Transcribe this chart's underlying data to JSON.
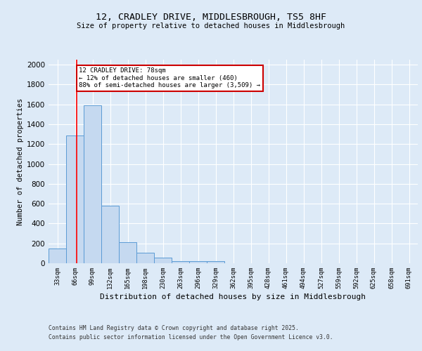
{
  "title_line1": "12, CRADLEY DRIVE, MIDDLESBROUGH, TS5 8HF",
  "title_line2": "Size of property relative to detached houses in Middlesbrough",
  "xlabel": "Distribution of detached houses by size in Middlesbrough",
  "ylabel": "Number of detached properties",
  "bins": [
    "33sqm",
    "66sqm",
    "99sqm",
    "132sqm",
    "165sqm",
    "198sqm",
    "230sqm",
    "263sqm",
    "296sqm",
    "329sqm",
    "362sqm",
    "395sqm",
    "428sqm",
    "461sqm",
    "494sqm",
    "527sqm",
    "559sqm",
    "592sqm",
    "625sqm",
    "658sqm",
    "691sqm"
  ],
  "values": [
    145,
    1290,
    1590,
    580,
    215,
    105,
    55,
    20,
    20,
    20,
    0,
    0,
    0,
    0,
    0,
    0,
    0,
    0,
    0,
    0,
    0
  ],
  "bar_color": "#c5d9f0",
  "bar_edgecolor": "#5b9bd5",
  "red_line_x": 1.08,
  "annotation_text": "12 CRADLEY DRIVE: 78sqm\n← 12% of detached houses are smaller (460)\n88% of semi-detached houses are larger (3,509) →",
  "annotation_box_color": "#ffffff",
  "annotation_box_edgecolor": "#cc0000",
  "ylim": [
    0,
    2050
  ],
  "yticks": [
    0,
    200,
    400,
    600,
    800,
    1000,
    1200,
    1400,
    1600,
    1800,
    2000
  ],
  "footer_line1": "Contains HM Land Registry data © Crown copyright and database right 2025.",
  "footer_line2": "Contains public sector information licensed under the Open Government Licence v3.0.",
  "plot_bg_color": "#ddeaf7",
  "fig_bg_color": "#ddeaf7"
}
